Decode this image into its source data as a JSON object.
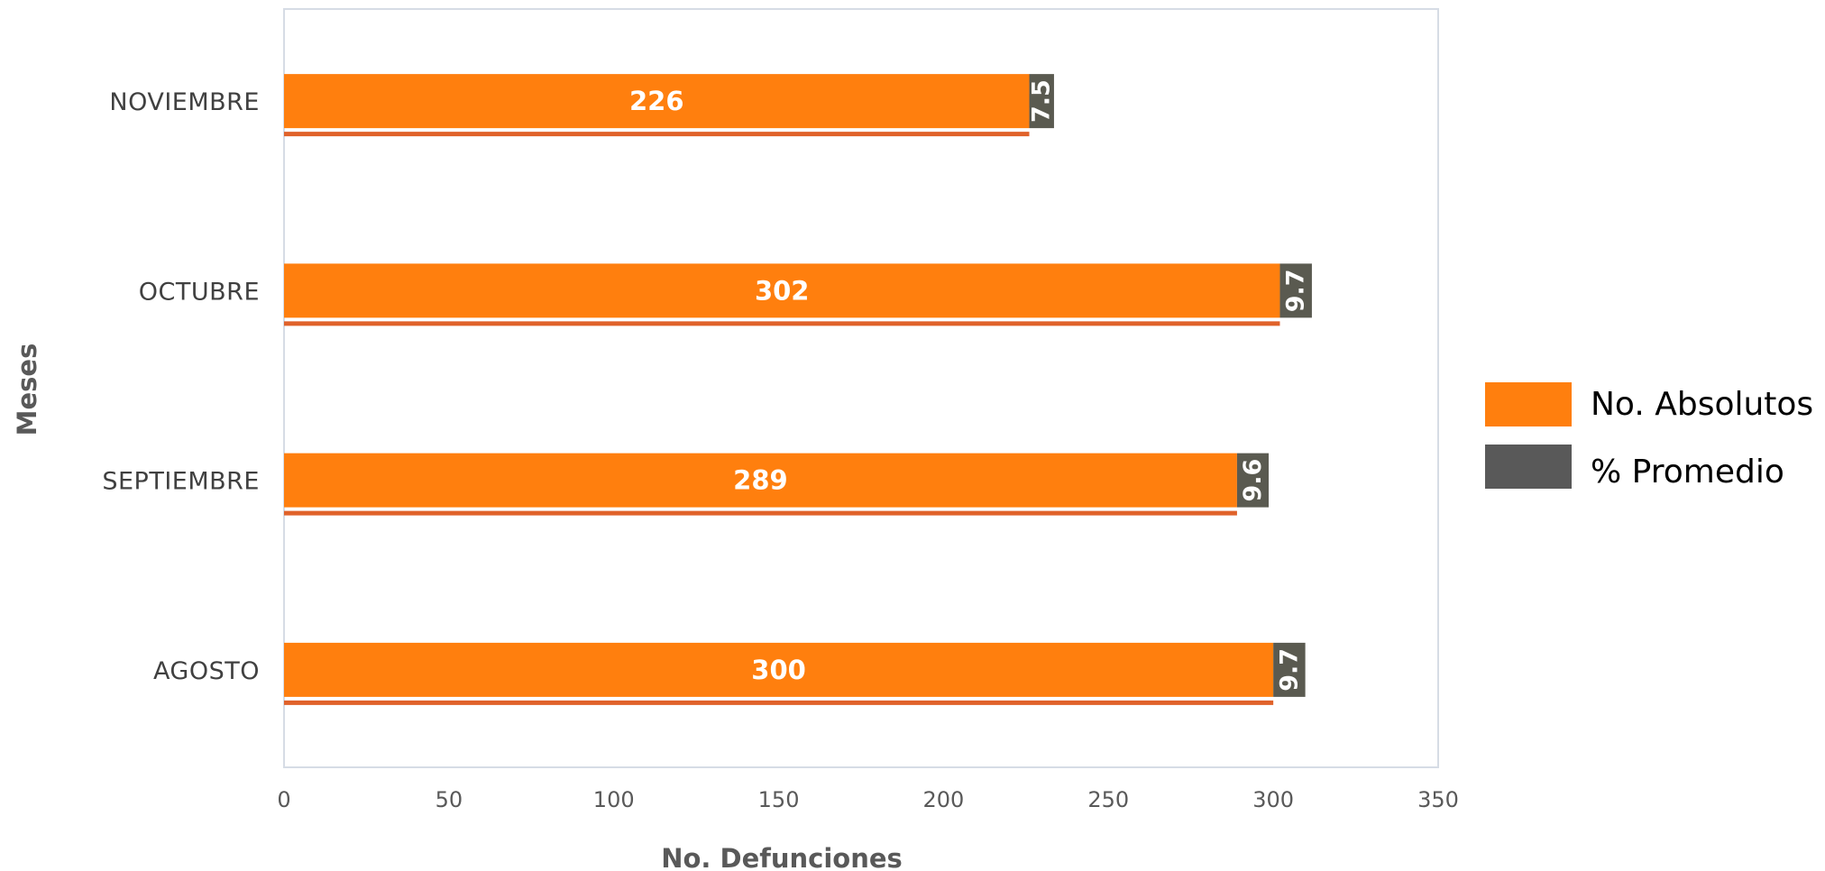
{
  "chart_data": {
    "type": "bar",
    "orientation": "horizontal",
    "categories": [
      "NOVIEMBRE",
      "OCTUBRE",
      "SEPTIEMBRE",
      "AGOSTO"
    ],
    "series": [
      {
        "name": "No. Absolutos",
        "values": [
          226,
          302,
          289,
          300
        ],
        "color": "#FF7F0E"
      },
      {
        "name": "% Promedio",
        "values": [
          7.5,
          9.7,
          9.6,
          9.7
        ],
        "color": "#595959",
        "stacked_after": "No. Absolutos"
      }
    ],
    "xlabel": "No. Defunciones",
    "ylabel": "Meses",
    "xlim": [
      0,
      350
    ],
    "xticks": [
      "0",
      "50",
      "100",
      "150",
      "200",
      "250",
      "300",
      "350"
    ],
    "grid": false,
    "legend_position": "right",
    "colors": {
      "absolutos": "#FF7F0E",
      "absolutos_underline": "#E0622A",
      "promedio_legend": "#595959",
      "promedio_bar": "#5A5A50",
      "plot_border": "#D6DCE5"
    }
  }
}
